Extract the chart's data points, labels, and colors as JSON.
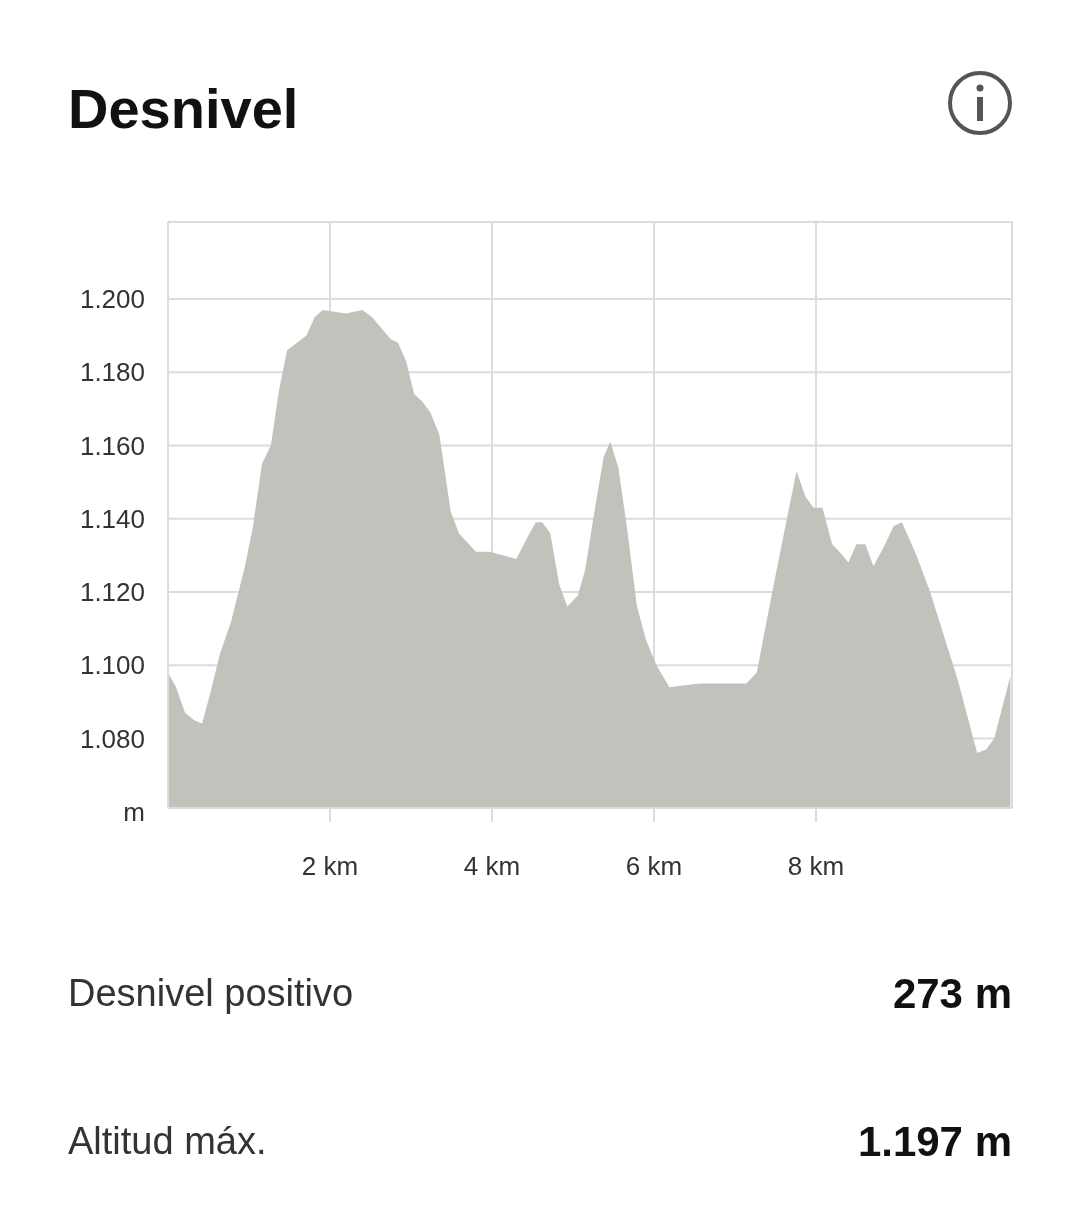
{
  "chart_data": {
    "type": "area",
    "title": "Desnivel",
    "ylabel": "m",
    "x": [
      0,
      0.1,
      0.21,
      0.32,
      0.42,
      0.53,
      0.64,
      0.78,
      0.95,
      1.05,
      1.16,
      1.27,
      1.37,
      1.47,
      1.71,
      1.81,
      1.91,
      2.2,
      2.4,
      2.52,
      2.75,
      2.84,
      2.94,
      3.04,
      3.14,
      3.24,
      3.35,
      3.49,
      3.59,
      3.8,
      3.97,
      4.3,
      4.44,
      4.54,
      4.62,
      4.72,
      4.83,
      4.93,
      5.06,
      5.15,
      5.28,
      5.38,
      5.46,
      5.56,
      5.67,
      5.79,
      5.9,
      6.03,
      6.19,
      6.56,
      6.81,
      7.14,
      7.27,
      7.39,
      7.55,
      7.76,
      7.87,
      7.97,
      8.08,
      8.2,
      8.29,
      8.4,
      8.5,
      8.61,
      8.71,
      8.83,
      8.96,
      9.06,
      9.24,
      9.41,
      9.75,
      9.99,
      10.1,
      10.2,
      10.4
    ],
    "series": [
      {
        "color": "#c2c1bc",
        "values": [
          1098,
          1094,
          1087,
          1085,
          1084,
          1093,
          1103,
          1112,
          1127,
          1138,
          1155,
          1160,
          1175,
          1186,
          1190,
          1195,
          1197,
          1196,
          1197,
          1195,
          1189,
          1188,
          1183,
          1174,
          1172,
          1169,
          1163,
          1142,
          1136,
          1131,
          1131,
          1129,
          1135,
          1139,
          1139,
          1136,
          1122,
          1116,
          1119,
          1126,
          1144,
          1157,
          1161,
          1154,
          1137,
          1116,
          1107,
          1100,
          1094,
          1095,
          1095,
          1095,
          1098,
          1112,
          1130,
          1153,
          1146,
          1143,
          1143,
          1133,
          1131,
          1128,
          1133,
          1133,
          1127,
          1132,
          1138,
          1139,
          1130,
          1120,
          1096,
          1076,
          1077,
          1080,
          1097
        ]
      }
    ],
    "xlim": [
      0,
      10.42
    ],
    "ylim": [
      1061,
      1221
    ],
    "xticks": [
      {
        "value": 2,
        "label": "2 km"
      },
      {
        "value": 4,
        "label": "4 km"
      },
      {
        "value": 6,
        "label": "6 km"
      },
      {
        "value": 8,
        "label": "8 km"
      }
    ],
    "yticks": [
      {
        "value": 1080,
        "label": "1.080"
      },
      {
        "value": 1100,
        "label": "1.100"
      },
      {
        "value": 1120,
        "label": "1.120"
      },
      {
        "value": 1140,
        "label": "1.140"
      },
      {
        "value": 1160,
        "label": "1.160"
      },
      {
        "value": 1180,
        "label": "1.180"
      },
      {
        "value": 1200,
        "label": "1.200"
      }
    ],
    "grid": true,
    "annotations": [
      "Desnivel positivo",
      "273 m",
      "Altitud máx.",
      "1.197 m"
    ]
  }
}
